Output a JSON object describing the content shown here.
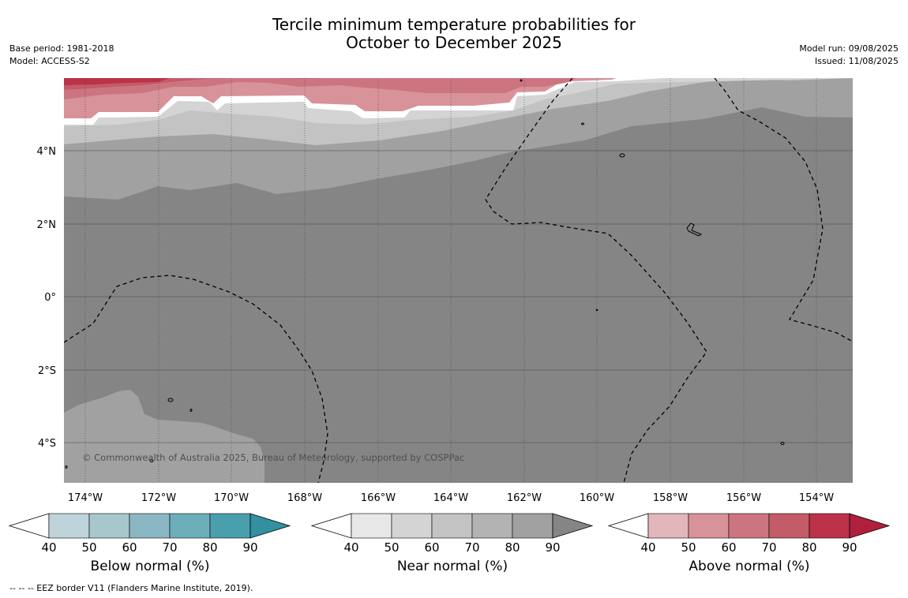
{
  "header": {
    "title_line1": "Tercile minimum temperature probabilities for",
    "title_line2": "October to December 2025",
    "base_period": "Base period: 1981-2018",
    "model": "Model: ACCESS-S2",
    "model_run": "Model run: 09/08/2025",
    "issued": "Issued: 11/08/2025"
  },
  "map": {
    "lon_labels": [
      "174°W",
      "172°W",
      "170°W",
      "168°W",
      "166°W",
      "164°W",
      "162°W",
      "160°W",
      "158°W",
      "156°W",
      "154°W"
    ],
    "lat_labels": [
      "4°N",
      "2°N",
      "0°",
      "2°S",
      "4°S"
    ],
    "copyright": "© Commonwealth of Australia 2025, Bureau of Meteorology, supported by COSPPac",
    "background_color": "#858585"
  },
  "colorbars": [
    {
      "id": "below",
      "label": "Below normal (%)",
      "ticks": [
        "40",
        "50",
        "60",
        "70",
        "80",
        "90"
      ],
      "colors": [
        "#ffffff",
        "#bfd4da",
        "#a7c7cc",
        "#8ab7c3",
        "#6daebb",
        "#4a9fad",
        "#3290a0"
      ]
    },
    {
      "id": "near",
      "label": "Near normal (%)",
      "ticks": [
        "40",
        "50",
        "60",
        "70",
        "80",
        "90"
      ],
      "colors": [
        "#ffffff",
        "#e7e7e7",
        "#d4d4d4",
        "#c3c3c3",
        "#b3b3b3",
        "#a1a1a1",
        "#858585"
      ]
    },
    {
      "id": "above",
      "label": "Above normal (%)",
      "ticks": [
        "40",
        "50",
        "60",
        "70",
        "80",
        "90"
      ],
      "colors": [
        "#ffffff",
        "#e3b6bc",
        "#d8929a",
        "#cc7580",
        "#c35b69",
        "#bb3249",
        "#b01f3c"
      ]
    }
  ],
  "footnote": "-- -- -- EEZ border V11 (Flanders Marine Institute, 2019)."
}
